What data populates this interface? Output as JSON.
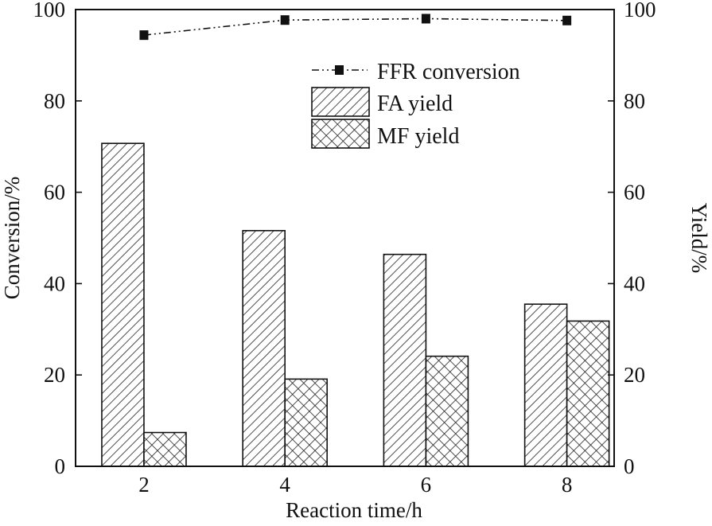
{
  "chart_data": {
    "type": "bar+line",
    "xlabel": "Reaction time/h",
    "ylabel_left": "Conversion/%",
    "ylabel_right": "Yield/%",
    "categories": [
      2,
      4,
      6,
      8
    ],
    "xlim": [
      1.03,
      8.67
    ],
    "ylim_left": [
      0,
      100
    ],
    "ylim_right": [
      0,
      100
    ],
    "yticks": [
      0,
      20,
      40,
      60,
      80,
      100
    ],
    "grid": false,
    "legend_position": "top-right",
    "series": [
      {
        "name": "FFR conversion",
        "kind": "line",
        "axis": "left",
        "marker": "square",
        "line_style": "dash-dot-dot",
        "color": "#111111",
        "values": [
          94.4,
          97.7,
          98.0,
          97.6
        ]
      },
      {
        "name": "FA yield",
        "kind": "bar",
        "axis": "right",
        "pattern": "diagonal-hatch",
        "values": [
          70.7,
          51.6,
          46.4,
          35.5
        ]
      },
      {
        "name": "MF yield",
        "kind": "bar",
        "axis": "right",
        "pattern": "cross-hatch",
        "values": [
          7.4,
          19.1,
          24.1,
          31.8
        ]
      }
    ]
  }
}
